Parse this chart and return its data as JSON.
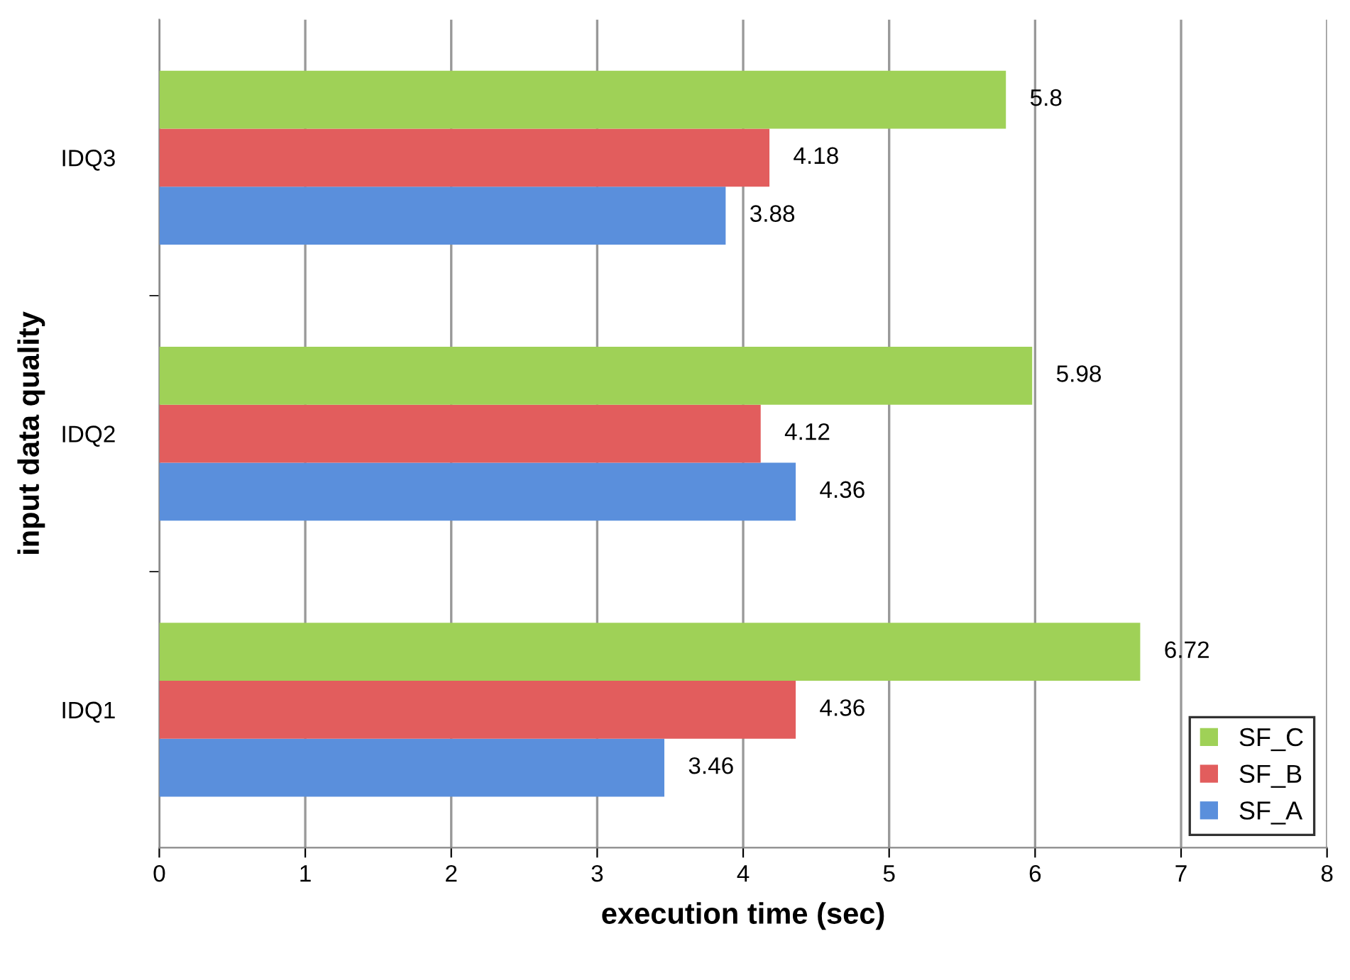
{
  "chart_data": {
    "type": "bar",
    "orientation": "horizontal",
    "xlabel": "execution time (sec)",
    "ylabel": "input data quality",
    "categories": [
      "IDQ3",
      "IDQ2",
      "IDQ1"
    ],
    "series": [
      {
        "name": "SF_A",
        "color": "#5a8fdc",
        "values": [
          3.88,
          4.36,
          3.46
        ]
      },
      {
        "name": "SF_B",
        "color": "#e25d5d",
        "values": [
          4.18,
          4.12,
          4.36
        ]
      },
      {
        "name": "SF_C",
        "color": "#9fd157",
        "values": [
          5.8,
          5.98,
          6.72
        ]
      }
    ],
    "xlim": [
      0,
      8
    ],
    "xticks": [
      0,
      1,
      2,
      3,
      4,
      5,
      6,
      7,
      8
    ],
    "grid": "x",
    "legend": "bottom right",
    "data_labels": true
  }
}
